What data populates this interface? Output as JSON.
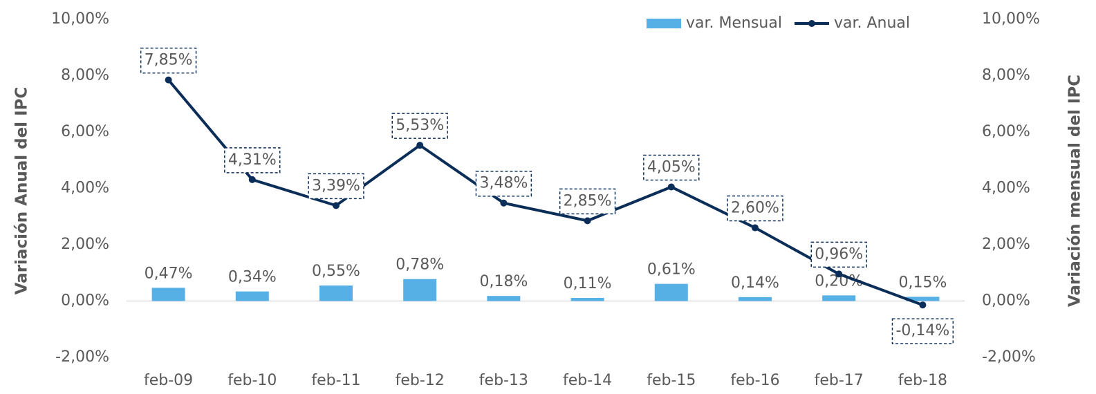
{
  "chart_data": {
    "type": "bar-line",
    "categories": [
      "feb-09",
      "feb-10",
      "feb-11",
      "feb-12",
      "feb-13",
      "feb-14",
      "feb-15",
      "feb-16",
      "feb-17",
      "feb-18"
    ],
    "series": [
      {
        "name": "var. Mensual",
        "type": "bar",
        "axis": "y2",
        "color": "#56b0e6",
        "values": [
          0.47,
          0.34,
          0.55,
          0.78,
          0.18,
          0.11,
          0.61,
          0.14,
          0.2,
          0.15
        ],
        "value_labels": [
          "0,47%",
          "0,34%",
          "0,55%",
          "0,78%",
          "0,18%",
          "0,11%",
          "0,61%",
          "0,14%",
          "0,20%",
          "0,15%"
        ]
      },
      {
        "name": "var. Anual",
        "type": "line",
        "color": "#0b2e59",
        "values": [
          7.85,
          4.31,
          3.39,
          5.53,
          3.48,
          2.85,
          4.05,
          2.6,
          0.96,
          -0.14
        ],
        "value_labels": [
          "7,85%",
          "4,31%",
          "3,39%",
          "5,53%",
          "3,48%",
          "2,85%",
          "4,05%",
          "2,60%",
          "0,96%",
          "-0,14%"
        ]
      }
    ],
    "ylabel": "Variación Anual del IPC",
    "y2label": "Variación mensual del IPC",
    "ylim": [
      -2,
      10
    ],
    "yticks": [
      {
        "value": -2,
        "label": "-2,00%"
      },
      {
        "value": 0,
        "label": "0,00%"
      },
      {
        "value": 2,
        "label": "2,00%"
      },
      {
        "value": 4,
        "label": "4,00%"
      },
      {
        "value": 6,
        "label": "6,00%"
      },
      {
        "value": 8,
        "label": "8,00%"
      },
      {
        "value": 10,
        "label": "10,00%"
      }
    ],
    "y2lim": [
      -2,
      10
    ],
    "y2ticks": [
      {
        "value": -2,
        "label": "-2,00%"
      },
      {
        "value": 0,
        "label": "0,00%"
      },
      {
        "value": 2,
        "label": "2,00%"
      },
      {
        "value": 4,
        "label": "4,00%"
      },
      {
        "value": 6,
        "label": "6,00%"
      },
      {
        "value": 8,
        "label": "8,00%"
      },
      {
        "value": 10,
        "label": "10,00%"
      }
    ],
    "legend": "top-right"
  }
}
